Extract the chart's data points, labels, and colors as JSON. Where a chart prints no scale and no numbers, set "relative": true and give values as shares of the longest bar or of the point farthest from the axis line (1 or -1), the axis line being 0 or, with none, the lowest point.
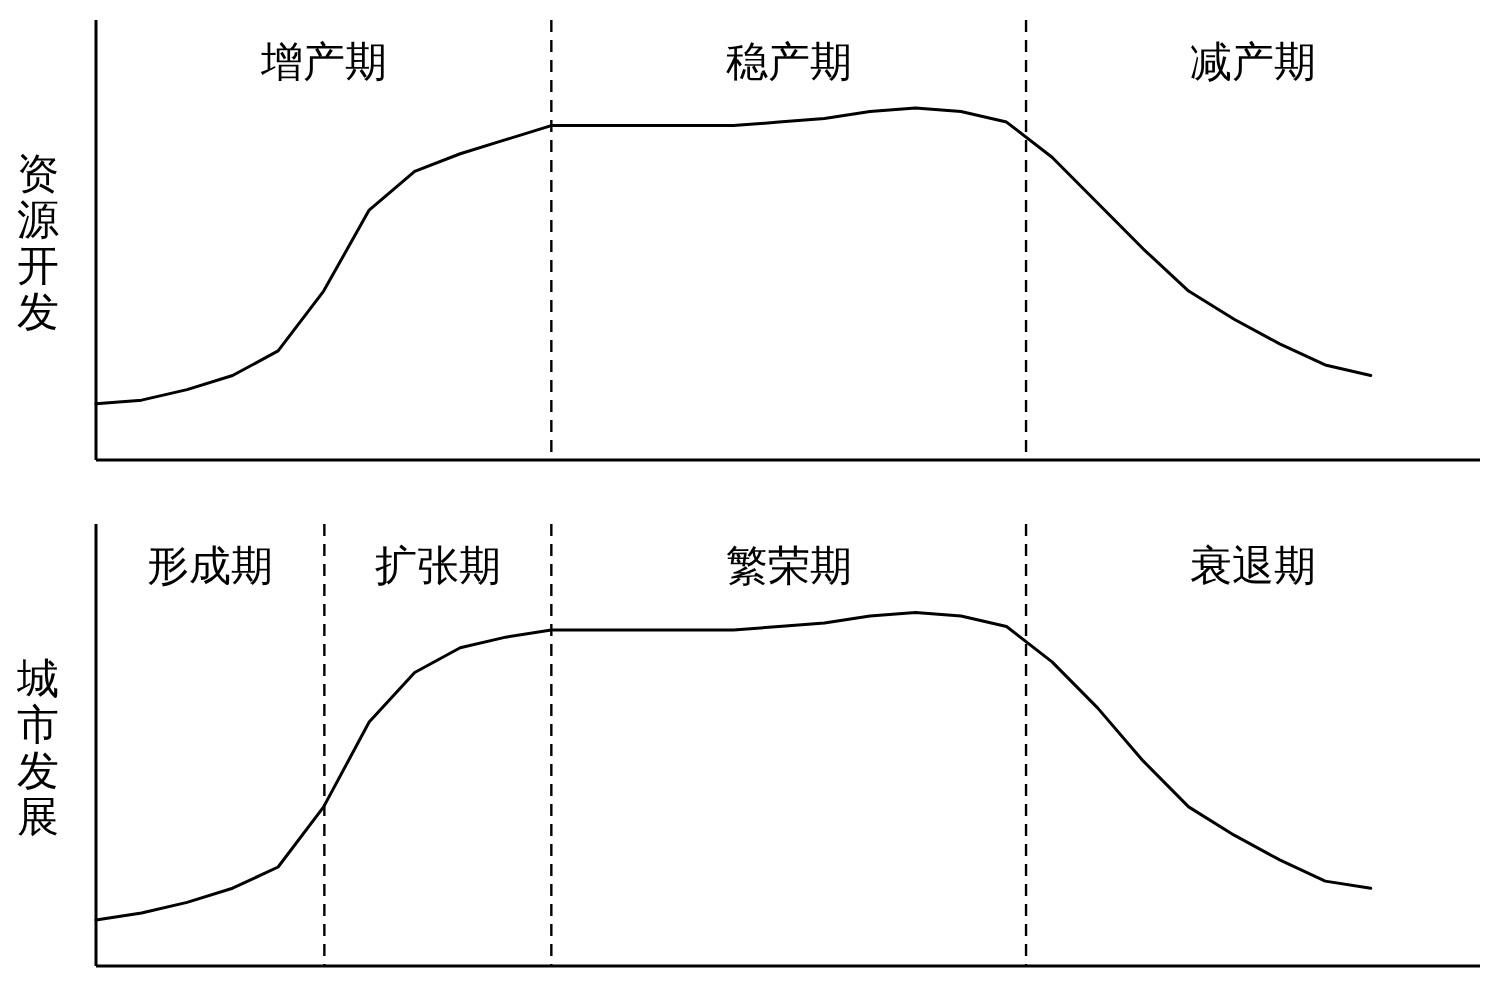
{
  "chart_data": [
    {
      "type": "line",
      "relative": true,
      "ylabel": "资源开发",
      "annotations": [
        "增产期",
        "稳产期",
        "减产期"
      ],
      "line_style": "solid",
      "categories": [
        null,
        null,
        null,
        null,
        null,
        null,
        null,
        null,
        null,
        null,
        null,
        null,
        null,
        null,
        null,
        null,
        null,
        null,
        null,
        null,
        null,
        null,
        null,
        null,
        null,
        null,
        null,
        null,
        null
      ],
      "series": [
        {
          "color": "#000000",
          "values": [
            0.16,
            0.17,
            0.2,
            0.24,
            0.31,
            0.48,
            0.71,
            0.82,
            0.87,
            0.91,
            0.95,
            0.95,
            0.95,
            0.95,
            0.95,
            0.96,
            0.97,
            0.99,
            1,
            0.99,
            0.96,
            0.86,
            0.73,
            0.6,
            0.48,
            0.4,
            0.33,
            0.27,
            0.24
          ]
        }
      ]
    },
    {
      "type": "line",
      "relative": true,
      "ylabel": "城市发展",
      "annotations": [
        "形成期",
        "扩张期",
        "繁荣期",
        "衰退期"
      ],
      "line_style": "solid",
      "categories": [
        null,
        null,
        null,
        null,
        null,
        null,
        null,
        null,
        null,
        null,
        null,
        null,
        null,
        null,
        null,
        null,
        null,
        null,
        null,
        null,
        null,
        null,
        null,
        null,
        null,
        null,
        null,
        null,
        null
      ],
      "series": [
        {
          "color": "#000000",
          "values": [
            0.13,
            0.15,
            0.18,
            0.22,
            0.28,
            0.45,
            0.69,
            0.83,
            0.9,
            0.93,
            0.95,
            0.95,
            0.95,
            0.95,
            0.95,
            0.96,
            0.97,
            0.99,
            1,
            0.99,
            0.96,
            0.86,
            0.73,
            0.58,
            0.45,
            0.37,
            0.3,
            0.24,
            0.22
          ]
        }
      ]
    }
  ]
}
